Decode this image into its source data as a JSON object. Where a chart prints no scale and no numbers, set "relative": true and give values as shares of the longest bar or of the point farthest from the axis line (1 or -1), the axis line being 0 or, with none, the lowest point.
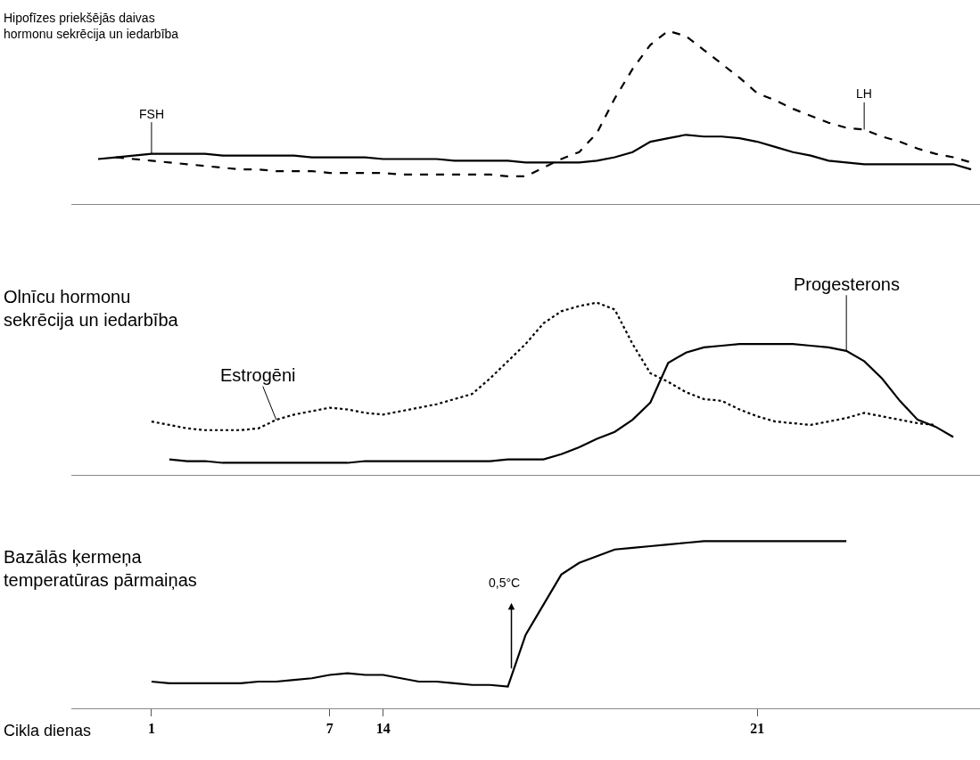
{
  "chart_data": [
    {
      "type": "line",
      "title": "Hipofīzes priekšējās daivas hormonu sekrēcija un iedarbība",
      "relative": true,
      "tick_labels": false,
      "categories": [
        null,
        null,
        null,
        null,
        "1",
        null,
        null,
        null,
        null,
        null,
        null,
        null,
        null,
        null,
        "7",
        null,
        null,
        "14",
        null,
        null,
        null,
        null,
        null,
        null,
        null,
        null,
        null,
        null,
        null,
        null,
        null,
        null,
        null,
        null,
        null,
        null,
        null,
        null,
        "21",
        null,
        null,
        null,
        null,
        null,
        null,
        null,
        null,
        null,
        null,
        null,
        null
      ],
      "series": [
        {
          "name": "FSH",
          "color": "#000000",
          "line_style": "solid",
          "values": [
            null,
            0.26,
            0.27,
            0.28,
            0.29,
            0.29,
            0.29,
            0.29,
            0.28,
            0.28,
            0.28,
            0.28,
            0.28,
            0.27,
            0.27,
            0.27,
            0.27,
            0.26,
            0.26,
            0.26,
            0.26,
            0.25,
            0.25,
            0.25,
            0.25,
            0.24,
            0.24,
            0.24,
            0.24,
            0.25,
            0.27,
            0.3,
            0.36,
            0.38,
            0.4,
            0.39,
            0.39,
            0.38,
            0.36,
            0.33,
            0.3,
            0.28,
            0.25,
            0.24,
            0.23,
            0.23,
            0.23,
            0.23,
            0.23,
            0.23,
            0.2
          ]
        },
        {
          "name": "LH",
          "color": "#000000",
          "line_style": "dashed",
          "values": [
            null,
            null,
            0.27,
            0.26,
            0.25,
            0.24,
            0.23,
            0.22,
            0.21,
            0.2,
            0.2,
            0.19,
            0.19,
            0.19,
            0.18,
            0.18,
            0.18,
            0.18,
            0.17,
            0.17,
            0.17,
            0.17,
            0.17,
            0.17,
            0.16,
            0.16,
            0.21,
            0.26,
            0.3,
            0.41,
            0.61,
            0.78,
            0.92,
            1.0,
            0.97,
            0.89,
            0.81,
            0.73,
            0.64,
            0.6,
            0.55,
            0.51,
            0.47,
            0.44,
            0.43,
            0.39,
            0.36,
            0.32,
            0.29,
            0.27,
            0.24
          ]
        }
      ]
    },
    {
      "type": "line",
      "title": "Olnīcu hormonu sekrēcija un iedarbība",
      "relative": true,
      "tick_labels": false,
      "categories": [
        null,
        null,
        null,
        null,
        "1",
        null,
        null,
        null,
        null,
        null,
        null,
        null,
        null,
        null,
        "7",
        null,
        null,
        "14",
        null,
        null,
        null,
        null,
        null,
        null,
        null,
        null,
        null,
        null,
        null,
        null,
        null,
        null,
        null,
        null,
        null,
        null,
        null,
        null,
        "21",
        null,
        null,
        null,
        null,
        null,
        null,
        null,
        null,
        null,
        null,
        null,
        null
      ],
      "series": [
        {
          "name": "Estrogēni",
          "color": "#000000",
          "line_style": "dotted",
          "values": [
            null,
            null,
            null,
            null,
            0.31,
            0.29,
            0.27,
            0.26,
            0.26,
            0.26,
            0.27,
            0.32,
            0.35,
            0.37,
            0.39,
            0.38,
            0.36,
            0.35,
            0.37,
            0.39,
            0.41,
            0.44,
            0.47,
            0.56,
            0.66,
            0.76,
            0.88,
            0.95,
            0.98,
            1.0,
            0.96,
            0.76,
            0.59,
            0.54,
            0.48,
            0.44,
            0.43,
            0.38,
            0.34,
            0.31,
            0.3,
            0.29,
            0.31,
            0.33,
            0.36,
            0.34,
            0.32,
            0.3,
            0.29,
            null,
            null
          ]
        },
        {
          "name": "Progesterons",
          "color": "#000000",
          "line_style": "solid",
          "values": [
            null,
            null,
            null,
            null,
            null,
            0.09,
            0.08,
            0.08,
            0.07,
            0.07,
            0.07,
            0.07,
            0.07,
            0.07,
            0.07,
            0.07,
            0.08,
            0.08,
            0.08,
            0.08,
            0.08,
            0.08,
            0.08,
            0.08,
            0.09,
            0.09,
            0.09,
            0.12,
            0.16,
            0.21,
            0.25,
            0.32,
            0.42,
            0.65,
            0.71,
            0.74,
            0.75,
            0.76,
            0.76,
            0.76,
            0.76,
            0.75,
            0.74,
            0.72,
            0.66,
            0.56,
            0.43,
            0.32,
            0.28,
            0.22,
            null
          ]
        }
      ]
    },
    {
      "type": "line",
      "title": "Bazālās ķermeņa temperatūras pārmaiņas",
      "xlabel": "Cikla dienas",
      "relative": true,
      "tick_labels": "x",
      "annotations": [
        "0,5°C"
      ],
      "categories": [
        null,
        null,
        null,
        null,
        "1",
        null,
        null,
        null,
        null,
        null,
        null,
        null,
        null,
        null,
        "7",
        null,
        null,
        "14",
        null,
        null,
        null,
        null,
        null,
        null,
        null,
        null,
        null,
        null,
        null,
        null,
        null,
        null,
        null,
        null,
        null,
        null,
        null,
        null,
        "21",
        null,
        null,
        null,
        null,
        null,
        null,
        null,
        null,
        null,
        null,
        null,
        null
      ],
      "series": [
        {
          "color": "#000000",
          "line_style": "solid",
          "values": [
            null,
            null,
            null,
            null,
            0.16,
            0.15,
            0.15,
            0.15,
            0.15,
            0.15,
            0.16,
            0.16,
            0.17,
            0.18,
            0.2,
            0.21,
            0.2,
            0.2,
            0.18,
            0.16,
            0.16,
            0.15,
            0.14,
            0.14,
            0.13,
            0.44,
            0.62,
            0.8,
            0.87,
            0.91,
            0.95,
            0.96,
            0.97,
            0.98,
            0.99,
            1.0,
            1.0,
            1.0,
            1.0,
            1.0,
            1.0,
            1.0,
            1.0,
            1.0,
            null,
            null,
            null,
            null,
            null,
            null,
            null
          ]
        }
      ]
    }
  ]
}
